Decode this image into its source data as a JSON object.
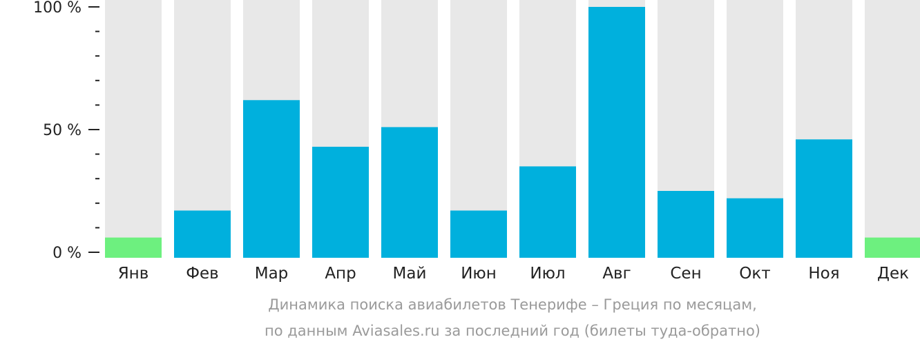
{
  "chart_data": {
    "type": "bar",
    "categories": [
      "Янв",
      "Фев",
      "Мар",
      "Апр",
      "Май",
      "Июн",
      "Июл",
      "Авг",
      "Сен",
      "Окт",
      "Ноя",
      "Дек"
    ],
    "values": [
      6,
      17,
      62,
      43,
      51,
      17,
      35,
      100,
      25,
      22,
      46,
      6
    ],
    "highlight": [
      true,
      false,
      false,
      false,
      false,
      false,
      false,
      false,
      false,
      false,
      false,
      true
    ],
    "ylim": [
      0,
      100
    ],
    "yticks": [
      {
        "value": 0,
        "label": "0 %"
      },
      {
        "value": 50,
        "label": "50 %"
      },
      {
        "value": 100,
        "label": "100 %"
      }
    ],
    "minor_ticks": [
      10,
      20,
      30,
      40,
      60,
      70,
      80,
      90
    ],
    "caption": [
      "Динамика поиска авиабилетов Тенерифе – Греция по месяцам,",
      "по данным Aviasales.ru за последний год (билеты туда-обратно)"
    ],
    "colors": {
      "bar": "#00b0dd",
      "highlight": "#6df07f",
      "track": "#e8e8e8",
      "axis": "#222222",
      "caption": "#9a9a9a"
    }
  }
}
